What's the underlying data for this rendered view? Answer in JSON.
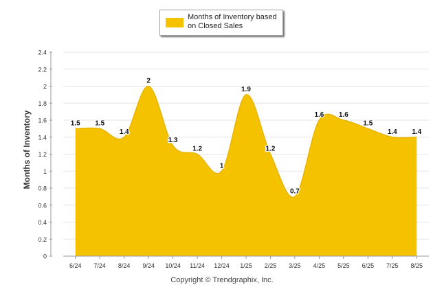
{
  "chart_data": {
    "type": "area",
    "categories": [
      "6/24",
      "7/24",
      "8/24",
      "9/24",
      "10/24",
      "11/24",
      "12/24",
      "1/25",
      "2/25",
      "3/25",
      "4/25",
      "5/25",
      "6/25",
      "7/25",
      "8/25"
    ],
    "series": [
      {
        "name": "Months of Inventory based on Closed Sales",
        "values": [
          1.5,
          1.5,
          1.4,
          2,
          1.3,
          1.2,
          1,
          1.9,
          1.2,
          0.7,
          1.6,
          1.6,
          1.5,
          1.4,
          1.4
        ],
        "color": "#f5c200"
      }
    ],
    "ylabel": "Months of Inventory",
    "ylim": [
      0,
      2.4
    ],
    "yticks": [
      0,
      0.2,
      0.4,
      0.6,
      0.8,
      1,
      1.2,
      1.4,
      1.6,
      1.8,
      2,
      2.2,
      2.4
    ],
    "grid": true,
    "legend_position": "top-center",
    "data_labels": true
  },
  "legend": {
    "label": "Months of Inventory based on Closed Sales"
  },
  "footer": {
    "copyright": "Copyright © Trendgraphix, Inc."
  }
}
